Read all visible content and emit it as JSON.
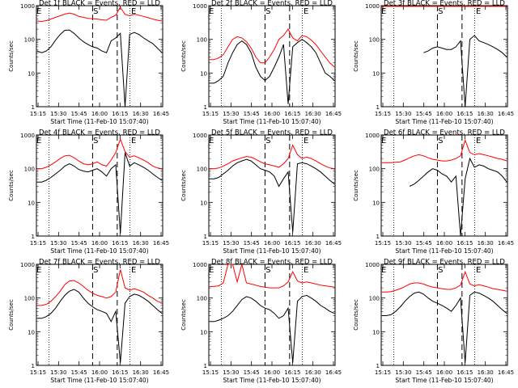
{
  "chart_data": [
    {
      "type": "line",
      "title": "Det 1f BLACK = Events, RED = LLD",
      "xlabel": "Start Time (11-Feb-10 15:07:40)",
      "ylabel": "Counts/sec",
      "yscale": "log",
      "ylim": [
        1,
        1000
      ],
      "xticks": [
        "15:15",
        "15:30",
        "15:45",
        "16:00",
        "16:15",
        "16:30",
        "16:45"
      ],
      "markers": [
        "E",
        "S",
        "E"
      ],
      "series": [
        {
          "color": "#000000",
          "values": [
            45,
            40,
            45,
            60,
            95,
            140,
            185,
            190,
            150,
            110,
            85,
            70,
            60,
            55,
            45,
            40,
            90,
            110,
            150,
            1.0,
            140,
            160,
            140,
            110,
            90,
            75,
            55,
            40
          ]
        },
        {
          "color": "#ff0000",
          "values": [
            350,
            340,
            360,
            400,
            450,
            500,
            560,
            600,
            560,
            480,
            450,
            420,
            410,
            400,
            380,
            370,
            450,
            520,
            900,
            550,
            500,
            560,
            520,
            480,
            440,
            400,
            370,
            350
          ]
        }
      ]
    },
    {
      "type": "line",
      "title": "Det 2f BLACK = Events, RED = LLD",
      "xlabel": "Start Time (11-Feb-10 15:07:40)",
      "ylabel": "Counts/sec",
      "yscale": "log",
      "ylim": [
        1,
        1000
      ],
      "xticks": [
        "15:15",
        "15:30",
        "15:45",
        "16:00",
        "16:15",
        "16:30",
        "16:45"
      ],
      "markers": [
        "E",
        "S",
        "E"
      ],
      "series": [
        {
          "color": "#000000",
          "values": [
            5,
            5,
            6,
            8,
            20,
            40,
            70,
            90,
            70,
            40,
            15,
            8,
            6,
            8,
            15,
            30,
            70,
            1.2,
            60,
            80,
            100,
            80,
            60,
            40,
            20,
            10,
            8,
            6
          ]
        },
        {
          "color": "#ff0000",
          "values": [
            25,
            25,
            28,
            35,
            60,
            100,
            120,
            110,
            85,
            55,
            30,
            20,
            20,
            30,
            50,
            100,
            130,
            200,
            110,
            90,
            130,
            120,
            95,
            70,
            45,
            30,
            20,
            15
          ]
        }
      ]
    },
    {
      "type": "line",
      "title": "Det 3f BLACK = Events, RED = LLD",
      "xlabel": "Start Time (11-Feb-10 15:07:40)",
      "ylabel": "Counts/sec",
      "yscale": "log",
      "ylim": [
        1,
        1000
      ],
      "xticks": [
        "15:15",
        "15:30",
        "15:45",
        "16:00",
        "16:15",
        "16:30",
        "16:45"
      ],
      "markers": [
        "E",
        "S",
        "E"
      ],
      "series": [
        {
          "color": "#000000",
          "values": [
            null,
            null,
            null,
            null,
            null,
            null,
            null,
            null,
            null,
            40,
            45,
            55,
            60,
            55,
            50,
            50,
            60,
            90,
            1.0,
            100,
            130,
            90,
            80,
            70,
            60,
            50,
            40,
            30
          ]
        },
        {
          "color": "#ff0000",
          "values": [
            950,
            950,
            950,
            950,
            950,
            950,
            950,
            950,
            950,
            950,
            950,
            950,
            950,
            950,
            950,
            950,
            950,
            950,
            950,
            950,
            950,
            950,
            950,
            950,
            950,
            950,
            950,
            950
          ]
        }
      ]
    },
    {
      "type": "line",
      "title": "Det 4f BLACK = Events, RED = LLD",
      "xlabel": "Start Time (11-Feb-10 15:07:40)",
      "ylabel": "Counts/sec",
      "yscale": "log",
      "ylim": [
        1,
        1000
      ],
      "xticks": [
        "15:15",
        "15:30",
        "15:45",
        "16:00",
        "16:15",
        "16:30",
        "16:45"
      ],
      "markers": [
        "E",
        "S",
        "E"
      ],
      "series": [
        {
          "color": "#000000",
          "values": [
            40,
            40,
            45,
            55,
            70,
            90,
            120,
            140,
            120,
            95,
            85,
            80,
            90,
            100,
            80,
            60,
            100,
            130,
            1.2,
            300,
            120,
            150,
            130,
            110,
            90,
            70,
            55,
            45
          ]
        },
        {
          "color": "#ff0000",
          "values": [
            100,
            100,
            110,
            130,
            160,
            200,
            240,
            250,
            210,
            170,
            140,
            130,
            140,
            160,
            130,
            120,
            180,
            300,
            750,
            320,
            220,
            240,
            210,
            180,
            150,
            120,
            105,
            100
          ]
        }
      ]
    },
    {
      "type": "line",
      "title": "Det 5f BLACK = Events, RED = LLD",
      "xlabel": "Start Time (11-Feb-10 15:07:40)",
      "ylabel": "Counts/sec",
      "yscale": "log",
      "ylim": [
        1,
        1000
      ],
      "xticks": [
        "15:15",
        "15:30",
        "15:45",
        "16:00",
        "16:15",
        "16:30",
        "16:45"
      ],
      "markers": [
        "E",
        "S",
        "E"
      ],
      "series": [
        {
          "color": "#000000",
          "values": [
            50,
            50,
            55,
            70,
            90,
            120,
            150,
            170,
            190,
            170,
            130,
            100,
            90,
            80,
            60,
            30,
            50,
            80,
            1.3,
            140,
            150,
            140,
            120,
            100,
            80,
            60,
            45,
            35
          ]
        },
        {
          "color": "#ff0000",
          "values": [
            100,
            100,
            105,
            120,
            140,
            170,
            190,
            210,
            230,
            220,
            190,
            160,
            140,
            130,
            120,
            110,
            140,
            200,
            500,
            260,
            200,
            220,
            200,
            170,
            140,
            120,
            105,
            100
          ]
        }
      ]
    },
    {
      "type": "line",
      "title": "Det 6f BLACK = Events, RED = LLD",
      "xlabel": "Start Time (11-Feb-10 15:07:40)",
      "ylabel": "Counts/sec",
      "yscale": "log",
      "ylim": [
        1,
        1000
      ],
      "xticks": [
        "15:15",
        "15:30",
        "15:45",
        "16:00",
        "16:15",
        "16:30",
        "16:45"
      ],
      "markers": [
        "E",
        "S",
        "E"
      ],
      "series": [
        {
          "color": "#000000",
          "values": [
            null,
            null,
            null,
            null,
            null,
            null,
            30,
            35,
            45,
            60,
            80,
            100,
            90,
            70,
            60,
            40,
            60,
            1.0,
            50,
            200,
            110,
            130,
            120,
            100,
            90,
            80,
            60,
            40
          ]
        },
        {
          "color": "#ff0000",
          "values": [
            150,
            150,
            150,
            155,
            160,
            180,
            210,
            240,
            260,
            240,
            210,
            190,
            180,
            170,
            170,
            180,
            200,
            240,
            700,
            300,
            260,
            280,
            260,
            240,
            220,
            200,
            190,
            170
          ]
        }
      ]
    },
    {
      "type": "line",
      "title": "Det 7f BLACK = Events, RED = LLD",
      "xlabel": "Start Time (11-Feb-10 15:07:40)",
      "ylabel": "Counts/sec",
      "yscale": "log",
      "ylim": [
        1,
        1000
      ],
      "xticks": [
        "15:15",
        "15:30",
        "15:45",
        "16:00",
        "16:15",
        "16:30",
        "16:45"
      ],
      "markers": [
        "E",
        "S",
        "E"
      ],
      "series": [
        {
          "color": "#000000",
          "values": [
            25,
            25,
            28,
            35,
            50,
            80,
            120,
            160,
            180,
            150,
            100,
            70,
            55,
            45,
            40,
            35,
            20,
            40,
            1.2,
            70,
            110,
            130,
            120,
            100,
            80,
            60,
            45,
            35
          ]
        },
        {
          "color": "#ff0000",
          "values": [
            60,
            60,
            65,
            80,
            110,
            160,
            250,
            320,
            330,
            280,
            220,
            170,
            140,
            120,
            110,
            100,
            110,
            150,
            700,
            200,
            170,
            190,
            170,
            150,
            120,
            100,
            80,
            70
          ]
        }
      ]
    },
    {
      "type": "line",
      "title": "Det 8f BLACK = Events, RED = LLD",
      "xlabel": "Start Time (11-Feb-10 15:07:40)",
      "ylabel": "Counts/sec",
      "yscale": "log",
      "ylim": [
        1,
        1000
      ],
      "xticks": [
        "15:15",
        "15:30",
        "15:45",
        "16:00",
        "16:15",
        "16:30",
        "16:45"
      ],
      "markers": [
        "E",
        "S",
        "E"
      ],
      "series": [
        {
          "color": "#000000",
          "values": [
            20,
            20,
            22,
            25,
            30,
            40,
            60,
            90,
            110,
            100,
            80,
            60,
            50,
            45,
            35,
            25,
            30,
            50,
            1.2,
            80,
            110,
            120,
            100,
            80,
            60,
            50,
            40,
            35
          ]
        },
        {
          "color": "#ff0000",
          "values": [
            220,
            220,
            230,
            280,
            1000,
            1000,
            300,
            1000,
            280,
            260,
            240,
            220,
            210,
            200,
            200,
            200,
            230,
            300,
            600,
            320,
            280,
            300,
            280,
            260,
            240,
            230,
            220,
            210
          ]
        }
      ]
    },
    {
      "type": "line",
      "title": "Det 9f BLACK = Events, RED = LLD",
      "xlabel": "Start Time (11-Feb-10 15:07:40)",
      "ylabel": "Counts/sec",
      "yscale": "log",
      "ylim": [
        1,
        1000
      ],
      "xticks": [
        "15:15",
        "15:30",
        "15:45",
        "16:00",
        "16:15",
        "16:30",
        "16:45"
      ],
      "markers": [
        "E",
        "S",
        "E"
      ],
      "series": [
        {
          "color": "#000000",
          "values": [
            30,
            30,
            32,
            40,
            55,
            80,
            110,
            140,
            150,
            130,
            100,
            80,
            70,
            60,
            50,
            40,
            60,
            100,
            1.2,
            120,
            150,
            140,
            120,
            100,
            80,
            60,
            45,
            35
          ]
        },
        {
          "color": "#ff0000",
          "values": [
            150,
            150,
            155,
            170,
            190,
            220,
            260,
            280,
            280,
            260,
            230,
            210,
            200,
            190,
            180,
            180,
            200,
            240,
            600,
            260,
            230,
            250,
            230,
            210,
            190,
            180,
            170,
            160
          ]
        }
      ]
    }
  ]
}
